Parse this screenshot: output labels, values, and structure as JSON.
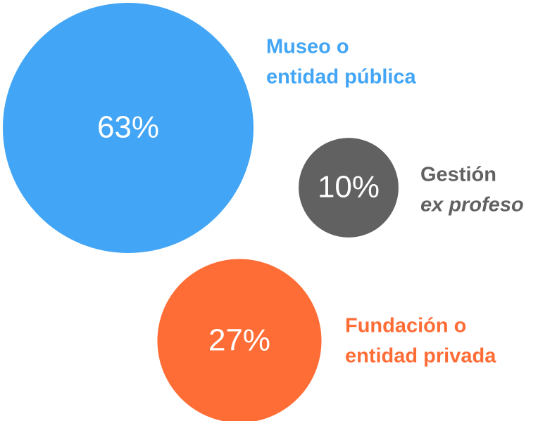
{
  "chart_data": {
    "type": "bubble",
    "categories": [
      [
        "Museo o",
        "entidad pública"
      ],
      [
        "Gestión",
        "ex profeso"
      ],
      [
        "Fundación o",
        "entidad privada"
      ]
    ],
    "values": [
      63,
      10,
      27
    ],
    "value_labels": [
      "63%",
      "10%",
      "27%"
    ],
    "colors": [
      "#42a5f5",
      "#616161",
      "#ff6d36"
    ]
  }
}
